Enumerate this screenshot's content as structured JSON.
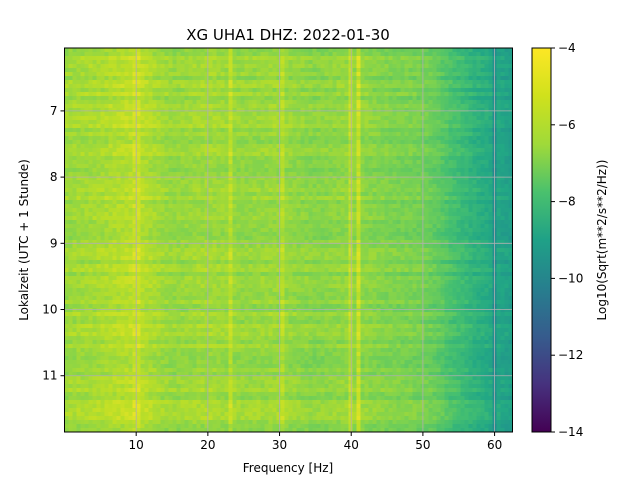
{
  "chart_data": {
    "type": "heatmap",
    "title": "XG UHA1  DHZ: 2022-01-30",
    "xlabel": "Frequency [Hz]",
    "ylabel": "Lokalzeit (UTC + 1 Stunde)",
    "xlim": [
      0,
      62.5
    ],
    "ylim": [
      11.85,
      6.05
    ],
    "xticks": [
      10,
      20,
      30,
      40,
      50,
      60
    ],
    "yticks": [
      7,
      8,
      9,
      10,
      11
    ],
    "grid": true,
    "colorbar": {
      "label": "Log10(Sqrt(m**2/s**2/Hz))",
      "range": [
        -14,
        -4
      ],
      "ticks": [
        -14,
        -12,
        -10,
        -8,
        -6,
        -4
      ],
      "colormap": "viridis"
    },
    "value_profile": {
      "frequency_hz": [
        0,
        5,
        10,
        15,
        20,
        25,
        30,
        35,
        40,
        45,
        50,
        52,
        54,
        56,
        58,
        60,
        62.5
      ],
      "log10_amplitude": [
        -5.5,
        -5.3,
        -5.0,
        -5.6,
        -5.4,
        -5.6,
        -5.5,
        -5.8,
        -5.6,
        -5.9,
        -6.1,
        -6.4,
        -6.9,
        -7.3,
        -7.7,
        -8.0,
        -8.4
      ]
    },
    "line_features": [
      {
        "frequency_hz": 10,
        "log10_amplitude": -4.8
      },
      {
        "frequency_hz": 23,
        "log10_amplitude": -5.0
      },
      {
        "frequency_hz": 30.5,
        "log10_amplitude": -5.1
      },
      {
        "frequency_hz": 40,
        "log10_amplitude": -5.0
      },
      {
        "frequency_hz": 41,
        "log10_amplitude": -4.8
      },
      {
        "frequency_hz": 60,
        "log10_amplitude": -9.0
      }
    ]
  }
}
